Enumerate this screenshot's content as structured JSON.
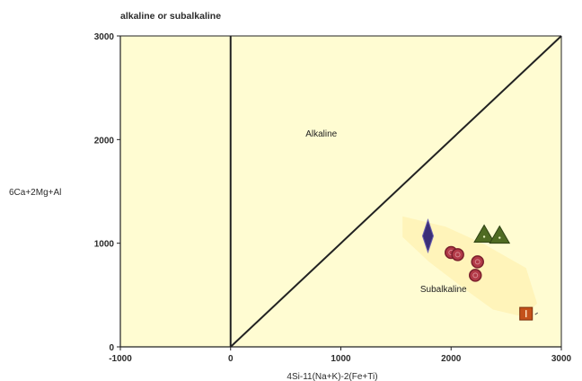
{
  "chart_data": {
    "type": "scatter",
    "title": "alkaline or subalkaline",
    "xlabel": "4Si-11(Na+K)-2(Fe+Ti)",
    "ylabel": "6Ca+2Mg+Al",
    "xlim": [
      -1000,
      3000
    ],
    "ylim": [
      0,
      3000
    ],
    "xticks": [
      "-1000",
      "0",
      "1000",
      "2000",
      "3000"
    ],
    "yticks": [
      "0",
      "1000",
      "2000",
      "3000"
    ],
    "grid": false,
    "background": "#fffcd2",
    "field_labels": [
      {
        "text": "Alkaline",
        "x": 680,
        "y": 2030
      },
      {
        "text": "Subalkaline",
        "x": 1720,
        "y": 530
      }
    ],
    "boundary_lines": [
      {
        "x": [
          0,
          0
        ],
        "y": [
          0,
          3000
        ]
      },
      {
        "x": [
          0,
          3000
        ],
        "y": [
          0,
          3000
        ]
      }
    ],
    "highlight_region": [
      [
        1560,
        1260
      ],
      [
        1950,
        1160
      ],
      [
        2300,
        990
      ],
      [
        2680,
        760
      ],
      [
        2780,
        420
      ],
      [
        2660,
        290
      ],
      [
        2380,
        360
      ],
      [
        2120,
        560
      ],
      [
        1800,
        820
      ],
      [
        1560,
        1060
      ]
    ],
    "series": [
      {
        "marker": "diamond",
        "color": "#3a2e78",
        "points": [
          {
            "x": 1790,
            "y": 1070
          }
        ]
      },
      {
        "marker": "triangle",
        "color": "#4f6b22",
        "points": [
          {
            "x": 2300,
            "y": 1080
          },
          {
            "x": 2440,
            "y": 1070
          }
        ]
      },
      {
        "marker": "circle",
        "color": "#b23a48",
        "points": [
          {
            "x": 2000,
            "y": 910
          },
          {
            "x": 2060,
            "y": 890
          },
          {
            "x": 2240,
            "y": 820
          },
          {
            "x": 2220,
            "y": 690
          }
        ]
      },
      {
        "marker": "square",
        "color": "#c4511a",
        "points": [
          {
            "x": 2680,
            "y": 320
          }
        ]
      }
    ]
  }
}
